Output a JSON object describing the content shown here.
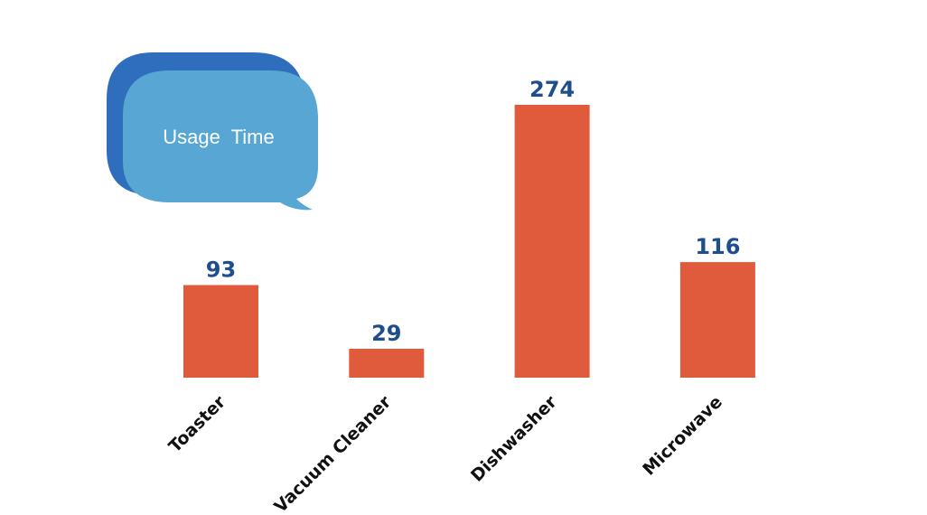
{
  "colors": {
    "bar": "#e05a3c",
    "value_label": "#1f4e8c",
    "bubble_front": "#57a6d4",
    "bubble_back": "#2f6ebd"
  },
  "callout": {
    "text": "Usage  Time",
    "shape": "speech-bubble"
  },
  "chart_data": {
    "type": "bar",
    "categories": [
      "Toaster",
      "Vacuum Cleaner",
      "Dishwasher",
      "Microwave"
    ],
    "values": [
      93,
      29,
      274,
      116
    ],
    "title": "",
    "xlabel": "",
    "ylabel": "",
    "ylim": [
      0,
      274
    ],
    "grid": false,
    "data_labels": true,
    "axes_visible": false
  }
}
